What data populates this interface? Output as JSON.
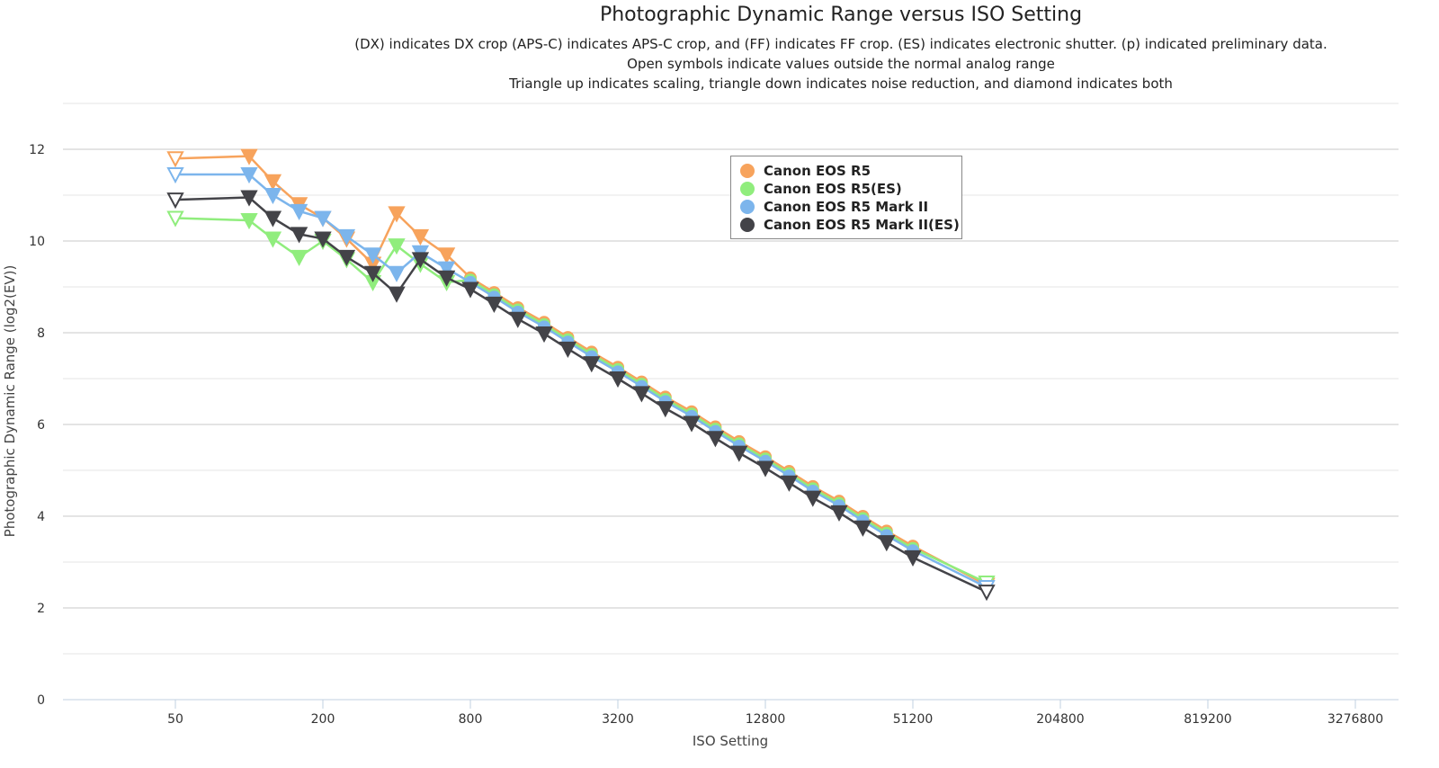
{
  "chart_data": {
    "type": "line",
    "title": "Photographic Dynamic Range versus ISO Setting",
    "subtitles": [
      "(DX) indicates DX crop (APS-C) indicates APS-C crop, and (FF) indicates FF crop. (ES) indicates electronic shutter. (p) indicated preliminary data.",
      "Open symbols indicate values outside the normal analog range",
      "Triangle up indicates scaling, triangle down indicates noise reduction, and diamond indicates both"
    ],
    "xlabel": "ISO Setting",
    "ylabel": "Photographic Dynamic Range (log2(EV))",
    "x_scale": "log2",
    "x_ticks": [
      "50",
      "200",
      "800",
      "3200",
      "12800",
      "51200",
      "204800",
      "819200",
      "3276800"
    ],
    "y_ticks": [
      "0",
      "2",
      "4",
      "6",
      "8",
      "10",
      "12"
    ],
    "ylim": [
      0,
      12.7
    ],
    "grid": true,
    "legend_placement": "top-center",
    "x": [
      50,
      100,
      125,
      160,
      200,
      250,
      320,
      400,
      500,
      640,
      800,
      1000,
      1250,
      1600,
      2000,
      2500,
      3200,
      4000,
      5000,
      6400,
      8000,
      10000,
      12800,
      16000,
      20000,
      25600,
      32000,
      40000,
      51200,
      102400
    ],
    "series": [
      {
        "name": "Canon EOS R5",
        "color": "#f7a35c",
        "values": [
          11.8,
          11.85,
          11.3,
          10.8,
          10.5,
          10.05,
          9.5,
          10.6,
          10.1,
          9.7,
          9.2,
          8.88,
          8.55,
          8.23,
          7.9,
          7.58,
          7.25,
          6.93,
          6.6,
          6.28,
          5.95,
          5.63,
          5.3,
          4.98,
          4.65,
          4.33,
          4.0,
          3.68,
          3.35,
          2.5
        ],
        "markers": [
          "tri-open",
          "tri",
          "tri",
          "tri",
          "tri",
          "tri",
          "tri",
          "tri",
          "tri",
          "tri",
          "circle",
          "circle",
          "circle",
          "circle",
          "circle",
          "circle",
          "circle",
          "circle",
          "circle",
          "circle",
          "circle",
          "circle",
          "circle",
          "circle",
          "circle",
          "circle",
          "circle",
          "circle",
          "circle",
          "tri-open"
        ]
      },
      {
        "name": "Canon EOS R5(ES)",
        "color": "#90ed7d",
        "values": [
          10.5,
          10.45,
          10.05,
          9.65,
          10.0,
          9.6,
          9.1,
          9.9,
          9.5,
          9.1,
          9.15,
          8.83,
          8.5,
          8.18,
          7.85,
          7.53,
          7.2,
          6.88,
          6.55,
          6.23,
          5.9,
          5.58,
          5.25,
          4.93,
          4.6,
          4.28,
          3.95,
          3.63,
          3.3,
          2.55
        ],
        "markers": [
          "tri-open",
          "tri",
          "tri",
          "tri",
          "tri",
          "tri",
          "tri",
          "tri",
          "tri",
          "tri",
          "circle",
          "circle",
          "circle",
          "circle",
          "circle",
          "circle",
          "circle",
          "circle",
          "circle",
          "circle",
          "circle",
          "circle",
          "circle",
          "circle",
          "circle",
          "circle",
          "circle",
          "circle",
          "circle",
          "tri-open"
        ]
      },
      {
        "name": "Canon EOS R5 Mark II",
        "color": "#7cb5ec",
        "values": [
          11.45,
          11.45,
          11.0,
          10.65,
          10.5,
          10.1,
          9.7,
          9.3,
          9.75,
          9.4,
          9.1,
          8.78,
          8.45,
          8.13,
          7.8,
          7.48,
          7.15,
          6.83,
          6.5,
          6.18,
          5.85,
          5.53,
          5.2,
          4.88,
          4.55,
          4.23,
          3.9,
          3.58,
          3.25,
          2.45
        ],
        "markers": [
          "tri-open",
          "tri",
          "tri",
          "tri",
          "tri",
          "tri",
          "tri",
          "tri",
          "tri",
          "tri",
          "circle",
          "circle",
          "circle",
          "circle",
          "circle",
          "circle",
          "circle",
          "circle",
          "circle",
          "circle",
          "circle",
          "circle",
          "circle",
          "circle",
          "circle",
          "circle",
          "circle",
          "circle",
          "circle",
          "tri-open"
        ]
      },
      {
        "name": "Canon EOS R5 Mark II(ES)",
        "color": "#434348",
        "values": [
          10.9,
          10.95,
          10.5,
          10.15,
          10.05,
          9.65,
          9.3,
          8.85,
          9.6,
          9.2,
          8.95,
          8.63,
          8.3,
          7.98,
          7.65,
          7.33,
          7.0,
          6.68,
          6.35,
          6.03,
          5.7,
          5.38,
          5.05,
          4.73,
          4.4,
          4.08,
          3.75,
          3.43,
          3.1,
          2.35
        ],
        "markers": [
          "tri-open",
          "tri",
          "tri",
          "tri",
          "tri",
          "tri",
          "tri",
          "tri",
          "tri",
          "tri",
          "tri",
          "tri",
          "tri",
          "tri",
          "tri",
          "tri",
          "tri",
          "tri",
          "tri",
          "tri",
          "tri",
          "tri",
          "tri",
          "tri",
          "tri",
          "tri",
          "tri",
          "tri",
          "tri",
          "tri-open"
        ]
      }
    ]
  }
}
